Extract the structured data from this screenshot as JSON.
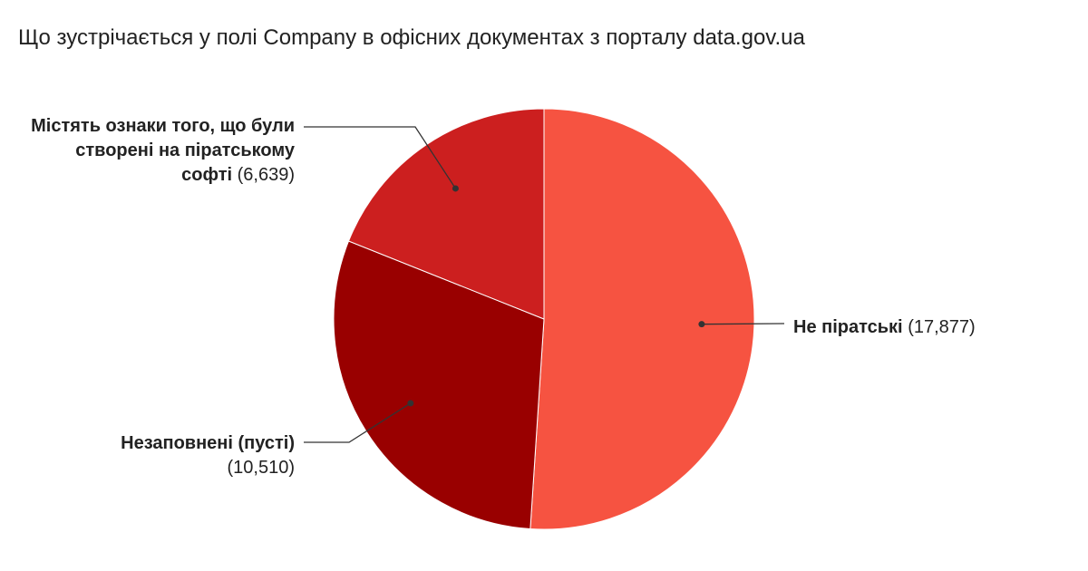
{
  "chart_data": {
    "type": "pie",
    "subtitle": "Що зустрічається у полі Company в офісних документах з порталу data.gov.ua",
    "categories": [
      "Не піратські",
      "Незаповнені (пусті)",
      "Містять ознаки того, що були створені на піратському софті"
    ],
    "values": [
      17877,
      10510,
      6639
    ],
    "value_labels": [
      "(17,877)",
      "(10,510)",
      "(6,639)"
    ],
    "colors": [
      "#f65341",
      "#990000",
      "#cc1f1f"
    ]
  }
}
